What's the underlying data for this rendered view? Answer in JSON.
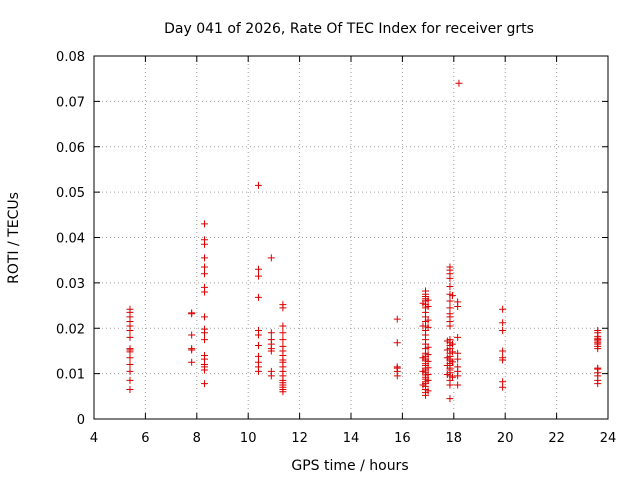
{
  "chart_data": {
    "type": "scatter",
    "title": "Day 041 of 2026, Rate Of TEC Index for receiver grts",
    "xlabel": "GPS time / hours",
    "ylabel": "ROTI / TECUs",
    "xlim": [
      4,
      24
    ],
    "ylim": [
      0,
      0.08
    ],
    "xticks": [
      "4",
      "6",
      "8",
      "10",
      "12",
      "14",
      "16",
      "18",
      "20",
      "22",
      "24"
    ],
    "yticks": [
      "0",
      "0.01",
      "0.02",
      "0.03",
      "0.04",
      "0.05",
      "0.06",
      "0.07",
      "0.08"
    ],
    "grid": true,
    "marker": "plus",
    "color": "#dd0000",
    "series": [
      {
        "points": [
          [
            5.4,
            0.0065
          ],
          [
            5.4,
            0.0085
          ],
          [
            5.4,
            0.0105
          ],
          [
            5.4,
            0.012
          ],
          [
            5.4,
            0.0135
          ],
          [
            5.4,
            0.0148
          ],
          [
            5.4,
            0.0152
          ],
          [
            5.4,
            0.0155
          ],
          [
            5.4,
            0.018
          ],
          [
            5.4,
            0.0195
          ],
          [
            5.4,
            0.0205
          ],
          [
            5.4,
            0.0215
          ],
          [
            5.4,
            0.0225
          ],
          [
            5.4,
            0.0235
          ],
          [
            5.4,
            0.0242
          ],
          [
            7.8,
            0.0125
          ],
          [
            7.8,
            0.0152
          ],
          [
            7.8,
            0.0155
          ],
          [
            7.8,
            0.0185
          ],
          [
            7.8,
            0.0232
          ],
          [
            7.8,
            0.0234
          ],
          [
            8.3,
            0.0078
          ],
          [
            8.3,
            0.0108
          ],
          [
            8.3,
            0.0115
          ],
          [
            8.3,
            0.012
          ],
          [
            8.3,
            0.0132
          ],
          [
            8.3,
            0.014
          ],
          [
            8.3,
            0.0175
          ],
          [
            8.3,
            0.019
          ],
          [
            8.3,
            0.0198
          ],
          [
            8.3,
            0.0225
          ],
          [
            8.3,
            0.028
          ],
          [
            8.3,
            0.029
          ],
          [
            8.3,
            0.032
          ],
          [
            8.3,
            0.0335
          ],
          [
            8.3,
            0.0355
          ],
          [
            8.3,
            0.0385
          ],
          [
            8.3,
            0.0395
          ],
          [
            8.3,
            0.043
          ],
          [
            10.4,
            0.0105
          ],
          [
            10.4,
            0.0115
          ],
          [
            10.4,
            0.0125
          ],
          [
            10.4,
            0.0138
          ],
          [
            10.4,
            0.0162
          ],
          [
            10.4,
            0.0185
          ],
          [
            10.4,
            0.0195
          ],
          [
            10.4,
            0.0268
          ],
          [
            10.4,
            0.0315
          ],
          [
            10.4,
            0.033
          ],
          [
            10.4,
            0.0515
          ],
          [
            10.9,
            0.0095
          ],
          [
            10.9,
            0.0105
          ],
          [
            10.9,
            0.015
          ],
          [
            10.9,
            0.0155
          ],
          [
            10.9,
            0.0165
          ],
          [
            10.9,
            0.0175
          ],
          [
            10.9,
            0.019
          ],
          [
            10.9,
            0.0355
          ],
          [
            11.35,
            0.006
          ],
          [
            11.35,
            0.0065
          ],
          [
            11.35,
            0.007
          ],
          [
            11.35,
            0.0075
          ],
          [
            11.35,
            0.008
          ],
          [
            11.35,
            0.0085
          ],
          [
            11.35,
            0.0095
          ],
          [
            11.35,
            0.0105
          ],
          [
            11.35,
            0.0115
          ],
          [
            11.35,
            0.0125
          ],
          [
            11.35,
            0.013
          ],
          [
            11.35,
            0.014
          ],
          [
            11.35,
            0.015
          ],
          [
            11.35,
            0.016
          ],
          [
            11.35,
            0.0175
          ],
          [
            11.35,
            0.019
          ],
          [
            11.35,
            0.0205
          ],
          [
            11.35,
            0.0245
          ],
          [
            11.35,
            0.0252
          ],
          [
            15.8,
            0.0095
          ],
          [
            15.8,
            0.0105
          ],
          [
            15.8,
            0.0112
          ],
          [
            15.8,
            0.0115
          ],
          [
            15.8,
            0.0168
          ],
          [
            15.8,
            0.022
          ],
          [
            16.9,
            0.0052
          ],
          [
            16.9,
            0.0058
          ],
          [
            16.9,
            0.0065
          ],
          [
            16.9,
            0.0072
          ],
          [
            16.9,
            0.0078
          ],
          [
            16.9,
            0.0082
          ],
          [
            16.9,
            0.0088
          ],
          [
            16.9,
            0.0092
          ],
          [
            16.9,
            0.0097
          ],
          [
            16.9,
            0.0102
          ],
          [
            16.9,
            0.0108
          ],
          [
            16.9,
            0.0112
          ],
          [
            16.9,
            0.0118
          ],
          [
            16.9,
            0.0122
          ],
          [
            16.9,
            0.0128
          ],
          [
            16.9,
            0.0132
          ],
          [
            16.9,
            0.0138
          ],
          [
            16.9,
            0.0145
          ],
          [
            16.9,
            0.0155
          ],
          [
            16.9,
            0.0165
          ],
          [
            16.9,
            0.0175
          ],
          [
            16.9,
            0.0185
          ],
          [
            16.9,
            0.0195
          ],
          [
            16.9,
            0.0205
          ],
          [
            16.9,
            0.0215
          ],
          [
            16.9,
            0.0225
          ],
          [
            16.9,
            0.0235
          ],
          [
            16.9,
            0.0245
          ],
          [
            16.9,
            0.0252
          ],
          [
            16.9,
            0.026
          ],
          [
            16.9,
            0.0265
          ],
          [
            16.9,
            0.027
          ],
          [
            16.9,
            0.0275
          ],
          [
            16.9,
            0.0282
          ],
          [
            17.0,
            0.0062
          ],
          [
            17.0,
            0.0085
          ],
          [
            17.0,
            0.0098
          ],
          [
            17.0,
            0.0113
          ],
          [
            17.0,
            0.0127
          ],
          [
            17.0,
            0.0142
          ],
          [
            17.0,
            0.0158
          ],
          [
            17.0,
            0.0202
          ],
          [
            17.0,
            0.0218
          ],
          [
            17.0,
            0.0248
          ],
          [
            17.0,
            0.0262
          ],
          [
            16.8,
            0.0075
          ],
          [
            16.8,
            0.0105
          ],
          [
            16.8,
            0.0135
          ],
          [
            16.8,
            0.0205
          ],
          [
            16.8,
            0.0255
          ],
          [
            17.85,
            0.0045
          ],
          [
            17.85,
            0.0075
          ],
          [
            17.85,
            0.0085
          ],
          [
            17.85,
            0.0095
          ],
          [
            17.85,
            0.0102
          ],
          [
            17.85,
            0.0108
          ],
          [
            17.85,
            0.0112
          ],
          [
            17.85,
            0.0118
          ],
          [
            17.85,
            0.0122
          ],
          [
            17.85,
            0.0128
          ],
          [
            17.85,
            0.0132
          ],
          [
            17.85,
            0.0138
          ],
          [
            17.85,
            0.0145
          ],
          [
            17.85,
            0.0155
          ],
          [
            17.85,
            0.0162
          ],
          [
            17.85,
            0.0168
          ],
          [
            17.85,
            0.0175
          ],
          [
            17.85,
            0.0205
          ],
          [
            17.85,
            0.0215
          ],
          [
            17.85,
            0.0225
          ],
          [
            17.85,
            0.0232
          ],
          [
            17.85,
            0.0245
          ],
          [
            17.85,
            0.026
          ],
          [
            17.85,
            0.0275
          ],
          [
            17.85,
            0.0292
          ],
          [
            17.85,
            0.031
          ],
          [
            17.85,
            0.032
          ],
          [
            17.85,
            0.0328
          ],
          [
            17.85,
            0.0335
          ],
          [
            17.75,
            0.0098
          ],
          [
            17.75,
            0.0118
          ],
          [
            17.75,
            0.0135
          ],
          [
            17.75,
            0.0152
          ],
          [
            17.75,
            0.0172
          ],
          [
            17.95,
            0.0092
          ],
          [
            17.95,
            0.0126
          ],
          [
            17.95,
            0.0148
          ],
          [
            17.95,
            0.0165
          ],
          [
            17.95,
            0.0272
          ],
          [
            18.15,
            0.0075
          ],
          [
            18.15,
            0.0095
          ],
          [
            18.15,
            0.0105
          ],
          [
            18.15,
            0.0115
          ],
          [
            18.15,
            0.0132
          ],
          [
            18.15,
            0.0145
          ],
          [
            18.15,
            0.018
          ],
          [
            18.15,
            0.0248
          ],
          [
            18.15,
            0.0258
          ],
          [
            18.2,
            0.074
          ],
          [
            19.9,
            0.007
          ],
          [
            19.9,
            0.0082
          ],
          [
            19.9,
            0.013
          ],
          [
            19.9,
            0.0135
          ],
          [
            19.9,
            0.015
          ],
          [
            19.9,
            0.0195
          ],
          [
            19.9,
            0.0212
          ],
          [
            19.9,
            0.0242
          ],
          [
            23.6,
            0.0078
          ],
          [
            23.6,
            0.0085
          ],
          [
            23.6,
            0.0095
          ],
          [
            23.6,
            0.0102
          ],
          [
            23.6,
            0.011
          ],
          [
            23.6,
            0.0112
          ],
          [
            23.6,
            0.0155
          ],
          [
            23.6,
            0.016
          ],
          [
            23.6,
            0.0165
          ],
          [
            23.6,
            0.0168
          ],
          [
            23.6,
            0.0172
          ],
          [
            23.6,
            0.0175
          ],
          [
            23.6,
            0.0178
          ],
          [
            23.6,
            0.0182
          ],
          [
            23.6,
            0.019
          ],
          [
            23.6,
            0.0195
          ]
        ]
      }
    ]
  }
}
